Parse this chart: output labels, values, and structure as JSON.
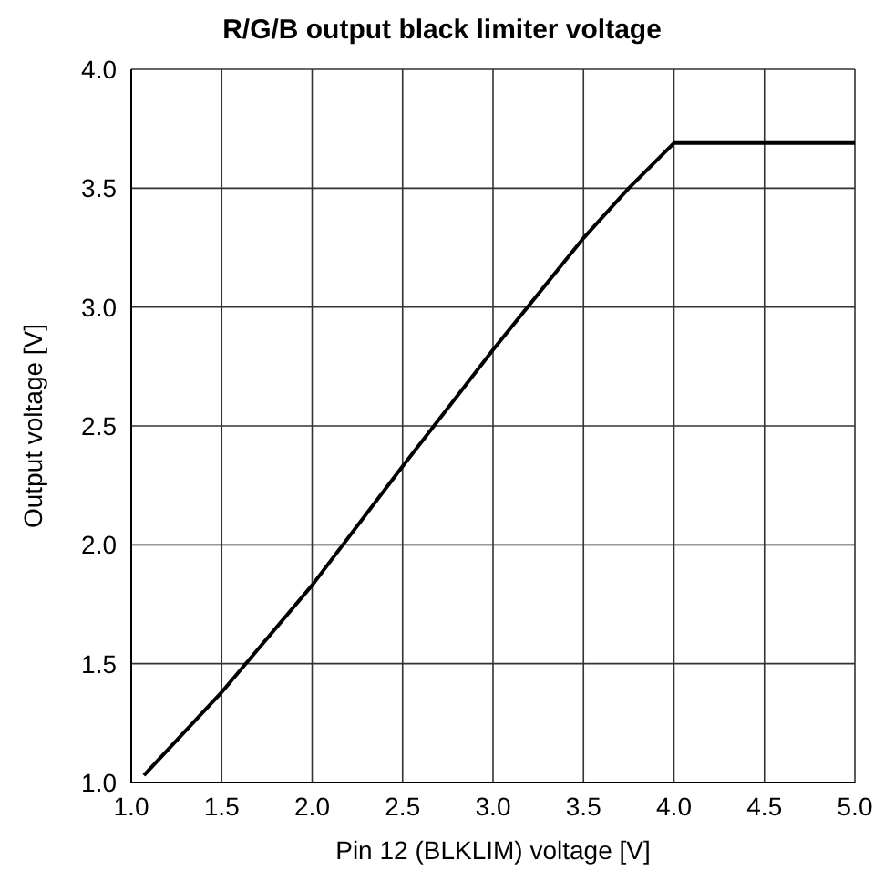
{
  "chart_data": {
    "type": "line",
    "title": "R/G/B output black limiter voltage",
    "xlabel": "Pin 12 (BLKLIM) voltage [V]",
    "ylabel": "Output voltage [V]",
    "x": [
      1.07,
      1.5,
      2.0,
      2.5,
      3.0,
      3.5,
      3.75,
      4.0,
      5.0
    ],
    "series": [
      {
        "color": "#000000",
        "values": [
          1.03,
          1.38,
          1.83,
          2.33,
          2.82,
          3.29,
          3.5,
          3.69,
          3.69
        ]
      }
    ],
    "xlim": [
      1.0,
      5.0
    ],
    "xticks": [
      {
        "value": 1,
        "label": "1.0"
      },
      1.5,
      {
        "value": 2,
        "label": "2.0"
      },
      2.5,
      {
        "value": 3,
        "label": "3.0"
      },
      3.5,
      {
        "value": 4,
        "label": "4.0"
      },
      4.5,
      {
        "value": 5,
        "label": "5.0"
      }
    ],
    "ylim": [
      1.0,
      4.0
    ],
    "yticks": [
      {
        "value": 1,
        "label": "1.0"
      },
      1.5,
      {
        "value": 2,
        "label": "2.0"
      },
      2.5,
      {
        "value": 3,
        "label": "3.0"
      },
      3.5,
      {
        "value": 4,
        "label": "4.0"
      }
    ],
    "grid": true,
    "marker": "none",
    "line_style": "solid",
    "legend": false
  }
}
